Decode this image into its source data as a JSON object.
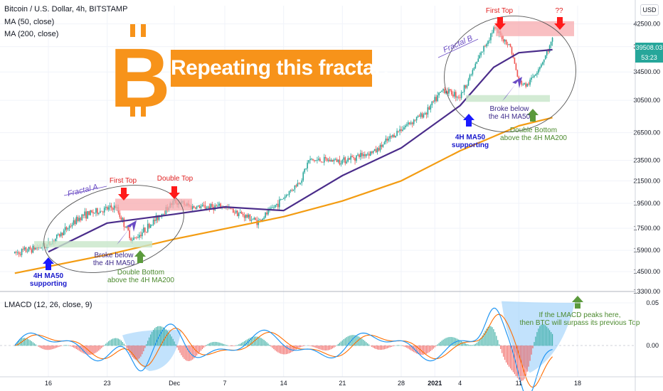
{
  "header": {
    "symbol_line": "Bitcoin / U.S. Dollar, 4h, BITSTAMP",
    "ma50_label": "MA (50, close)",
    "ma200_label": "MA (200, close)",
    "scale_badge": "USD"
  },
  "banner": {
    "text": "Repeating this fractal?"
  },
  "logo": {
    "glyph": "B",
    "color": "#f7931a"
  },
  "colors": {
    "candle_up": "#26a69a",
    "candle_down": "#ef5350",
    "ma50": "#4a2c8a",
    "ma200": "#f39c12",
    "macd_line": "#2196f3",
    "signal_line": "#ff6d00",
    "hist_up": "#26a69a",
    "hist_down": "#ef5350",
    "top_zone": "#f7a9ad",
    "bottom_zone": "#c8e6c9",
    "red_arrow": "#ff1a1a",
    "blue_arrow": "#1a1aff",
    "green_arrow": "#5b9a3c",
    "purple_arrow": "#6a4bc4"
  },
  "price_axis": {
    "ticks": [
      "42500.00",
      "38500.00",
      "34500.00",
      "30500.00",
      "26500.00",
      "23500.00",
      "21500.00",
      "19500.00",
      "17500.00",
      "15900.00",
      "14500.00",
      "13300.00"
    ],
    "last_price": "39508.03",
    "countdown": "53:23"
  },
  "macd_axis": {
    "ticks": [
      "0.05",
      "0.00"
    ]
  },
  "time_axis": {
    "ticks": [
      "16",
      "23",
      "Dec",
      "7",
      "14",
      "21",
      "28",
      "2021",
      "4",
      "11",
      "18"
    ]
  },
  "annotations": {
    "fractal_a": "Fractal A",
    "fractal_b": "Fractal B",
    "first_top_a": "First Top",
    "double_top_a": "Double Top",
    "first_top_b": "First Top",
    "question_b": "??",
    "broke_a": "Broke below\nthe 4H MA50",
    "broke_b": "Broke below\nthe 4H MA50",
    "support_a": "4H MA50\nsupporting",
    "support_b": "4H MA50\nsupporting",
    "double_bottom_a": "Double Bottom\nabove the 4H MA200",
    "double_bottom_b": "Double Bottom\nabove the 4H MA200",
    "lmacd_note": "If the LMACD peaks here,\nthen BTC will surpass its previous Top"
  },
  "lmacd_label": "LMACD (12, 26, close, 9)",
  "chart_data": {
    "type": "line",
    "title": "Bitcoin / U.S. Dollar, 4h, BITSTAMP",
    "x": [
      "16",
      "23",
      "Dec",
      "7",
      "14",
      "21",
      "28",
      "2021",
      "4",
      "11",
      "18"
    ],
    "price_path": [
      [
        "Nov 12",
        15700
      ],
      [
        "Nov 16",
        16300
      ],
      [
        "Nov 20",
        18500
      ],
      [
        "Nov 24",
        19200
      ],
      [
        "Nov 26",
        16600
      ],
      [
        "Nov 28",
        17700
      ],
      [
        "Dec 1",
        19700
      ],
      [
        "Dec 3",
        19200
      ],
      [
        "Dec 7",
        19200
      ],
      [
        "Dec 11",
        18000
      ],
      [
        "Dec 13",
        19300
      ],
      [
        "Dec 16",
        21500
      ],
      [
        "Dec 17",
        23500
      ],
      [
        "Dec 21",
        23500
      ],
      [
        "Dec 25",
        24500
      ],
      [
        "Dec 28",
        27000
      ],
      [
        "Dec 31",
        29000
      ],
      [
        "Jan 2",
        32000
      ],
      [
        "Jan 4",
        31000
      ],
      [
        "Jan 6",
        36000
      ],
      [
        "Jan 8",
        41700
      ],
      [
        "Jan 10",
        38500
      ],
      [
        "Jan 11",
        33000
      ],
      [
        "Jan 12",
        32500
      ],
      [
        "Jan 14",
        36500
      ],
      [
        "Jan 15",
        39508
      ]
    ],
    "series": [
      {
        "name": "MA (50, close)",
        "values": [
          [
            "Nov 16",
            15800
          ],
          [
            "Nov 23",
            17900
          ],
          [
            "Dec 1",
            18600
          ],
          [
            "Dec 7",
            19200
          ],
          [
            "Dec 14",
            18900
          ],
          [
            "Dec 21",
            22000
          ],
          [
            "Dec 28",
            24800
          ],
          [
            "Jan 4",
            29800
          ],
          [
            "Jan 8",
            35200
          ],
          [
            "Jan 11",
            37500
          ],
          [
            "Jan 15",
            38000
          ]
        ]
      },
      {
        "name": "MA (200, close)",
        "values": [
          [
            "Nov 12",
            14400
          ],
          [
            "Nov 23",
            15600
          ],
          [
            "Dec 1",
            16700
          ],
          [
            "Dec 14",
            18400
          ],
          [
            "Dec 21",
            19700
          ],
          [
            "Dec 28",
            21500
          ],
          [
            "Jan 4",
            24500
          ],
          [
            "Jan 11",
            27300
          ],
          [
            "Jan 15",
            28300
          ]
        ]
      }
    ],
    "lmacd": {
      "params": "12, 26, close, 9",
      "ylim": [
        -0.035,
        0.06
      ]
    },
    "ylim": [
      13300,
      46000
    ],
    "scale": "log",
    "grid": true,
    "legend": "top-left"
  }
}
